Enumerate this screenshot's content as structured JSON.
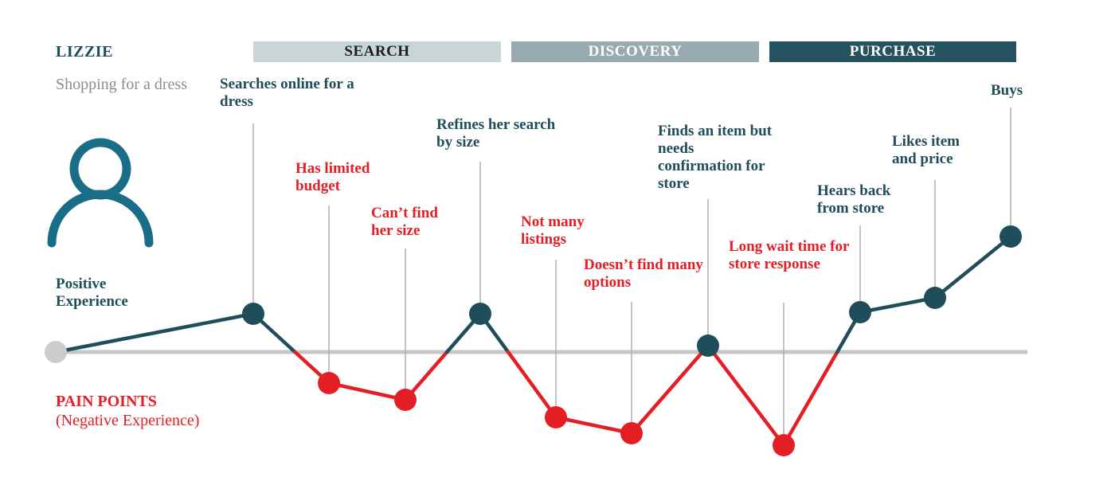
{
  "persona": {
    "name": "LIZZIE",
    "goal": "Shopping for a dress",
    "icon": "user-icon"
  },
  "phases": [
    {
      "label": "SEARCH",
      "color": "#c9d6d8"
    },
    {
      "label": "DISCOVERY",
      "color": "#97aab0"
    },
    {
      "label": "PURCHASE",
      "color": "#24535f"
    }
  ],
  "legend": {
    "positive": "Positive Experience",
    "negative_title": "PAIN POINTS",
    "negative_sub": "(Negative Experience)"
  },
  "colors": {
    "positive": "#1f4e5a",
    "negative": "#e31e24",
    "baseline": "#c6c6c6",
    "start": "#cccccc"
  },
  "steps": [
    {
      "label": "",
      "type": "start"
    },
    {
      "label": "Searches online for a dress",
      "type": "positive"
    },
    {
      "label": "Has limited budget",
      "type": "negative"
    },
    {
      "label": "Can’t find her size",
      "type": "negative"
    },
    {
      "label": "Refines her search by size",
      "type": "positive"
    },
    {
      "label": "Not many listings",
      "type": "negative"
    },
    {
      "label": "Doesn’t find many options",
      "type": "negative"
    },
    {
      "label": "Finds an item but needs confirmation for store",
      "type": "positive"
    },
    {
      "label": "Long wait time for store response",
      "type": "negative"
    },
    {
      "label": "Hears back from store",
      "type": "positive"
    },
    {
      "label": "Likes item and price",
      "type": "positive"
    },
    {
      "label": "Buys",
      "type": "positive"
    }
  ]
}
